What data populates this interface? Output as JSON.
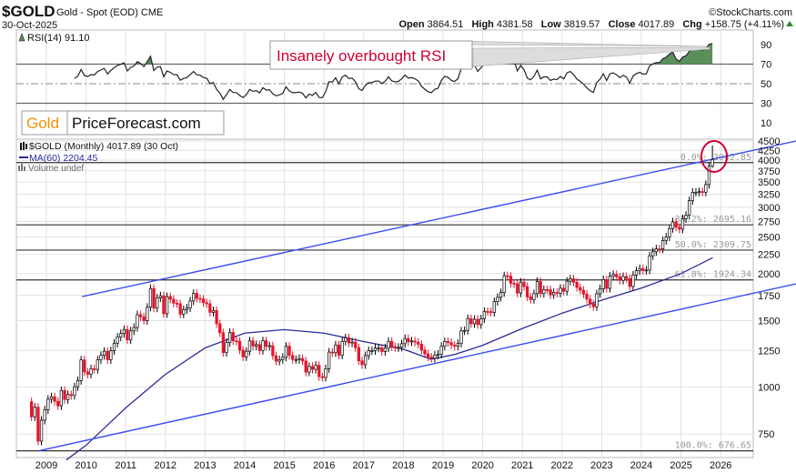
{
  "header": {
    "symbol": "$GOLD",
    "description": "Gold - Spot (EOD) CME",
    "date": "30-Oct-2025",
    "watermark": "©StockCharts.com",
    "open_label": "Open",
    "open": "3864.51",
    "high_label": "High",
    "high": "4381.58",
    "low_label": "Low",
    "low": "3819.57",
    "close_label": "Close",
    "close": "4017.89",
    "chg_label": "Chg",
    "chg": "+158.75 (+4.11%)",
    "up_color": "#2e8b2e"
  },
  "logo": {
    "part1": "Gold",
    "part2": "PriceForecast.com",
    "part1_color": "#f39200"
  },
  "annotation": {
    "text": "Insanely overbought RSI",
    "color": "#cc0033"
  },
  "chart_data": [
    {
      "type": "line",
      "name": "rsi-panel",
      "legend": "RSI(14) 91.10",
      "ylim": [
        0,
        100
      ],
      "yticks": [
        90,
        70,
        50,
        30,
        10
      ],
      "overbought": 70,
      "midline": 50,
      "fill_color": "#5a8f5a",
      "period": 14
    },
    {
      "type": "candlestick",
      "name": "price-panel",
      "legend_price": "$GOLD (Monthly) 4017.89 (30 Oct)",
      "legend_ma": "MA(60) 2204.45",
      "legend_volume": "Volume undef",
      "scale": "log",
      "ylim": [
        640,
        4600
      ],
      "yticks": [
        4500,
        4250,
        4000,
        3750,
        3500,
        3250,
        3000,
        2750,
        2500,
        2250,
        2000,
        1750,
        1500,
        1250,
        1000,
        750
      ],
      "xticks": [
        "2009",
        "2010",
        "2011",
        "2012",
        "2013",
        "2014",
        "2015",
        "2016",
        "2017",
        "2018",
        "2019",
        "2020",
        "2021",
        "2022",
        "2023",
        "2024",
        "2025",
        "2026"
      ],
      "start_month": "2008-07",
      "monthly_close": [
        914,
        833,
        884,
        718,
        816,
        870,
        928,
        942,
        916,
        891,
        979,
        926,
        955,
        949,
        1001,
        1040,
        1180,
        1096,
        1081,
        1118,
        1113,
        1180,
        1213,
        1244,
        1181,
        1248,
        1307,
        1357,
        1386,
        1421,
        1333,
        1409,
        1439,
        1556,
        1536,
        1500,
        1628,
        1826,
        1620,
        1725,
        1746,
        1565,
        1738,
        1710,
        1669,
        1664,
        1561,
        1604,
        1622,
        1692,
        1772,
        1719,
        1713,
        1675,
        1663,
        1578,
        1596,
        1472,
        1393,
        1234,
        1312,
        1396,
        1326,
        1323,
        1253,
        1202,
        1244,
        1326,
        1284,
        1296,
        1250,
        1327,
        1282,
        1287,
        1210,
        1171,
        1182,
        1199,
        1283,
        1213,
        1183,
        1183,
        1190,
        1172,
        1095,
        1134,
        1114,
        1142,
        1065,
        1060,
        1118,
        1238,
        1233,
        1293,
        1215,
        1322,
        1351,
        1309,
        1316,
        1272,
        1173,
        1146,
        1211,
        1249,
        1249,
        1268,
        1269,
        1242,
        1269,
        1322,
        1280,
        1271,
        1275,
        1303,
        1345,
        1318,
        1325,
        1315,
        1299,
        1253,
        1224,
        1201,
        1192,
        1215,
        1222,
        1282,
        1321,
        1313,
        1292,
        1284,
        1305,
        1409,
        1413,
        1520,
        1472,
        1513,
        1464,
        1517,
        1587,
        1585,
        1577,
        1686,
        1730,
        1781,
        1975,
        1968,
        1886,
        1879,
        1776,
        1898,
        1848,
        1734,
        1707,
        1769,
        1906,
        1770,
        1814,
        1813,
        1757,
        1783,
        1774,
        1829,
        1796,
        1909,
        1937,
        1897,
        1838,
        1807,
        1765,
        1711,
        1660,
        1633,
        1768,
        1824,
        1928,
        1827,
        1969,
        1990,
        1962,
        1919,
        1965,
        1940,
        1849,
        1983,
        2036,
        2063,
        2039,
        2044,
        2230,
        2286,
        2327,
        2326,
        2447,
        2503,
        2634,
        2744,
        2657,
        2625,
        2798,
        2858,
        3124,
        3289,
        3289,
        3303,
        3290,
        3448,
        3858,
        4017.89
      ],
      "last_bar": {
        "open": 3864.51,
        "high": 4381.58,
        "low": 3819.57,
        "close": 4017.89
      },
      "ma60": [
        [
          2009.5,
          640
        ],
        [
          2010,
          700
        ],
        [
          2011,
          880
        ],
        [
          2012,
          1080
        ],
        [
          2013,
          1270
        ],
        [
          2014,
          1390
        ],
        [
          2015,
          1420
        ],
        [
          2016,
          1390
        ],
        [
          2017,
          1320
        ],
        [
          2018,
          1260
        ],
        [
          2018.7,
          1185
        ],
        [
          2019.3,
          1220
        ],
        [
          2020,
          1290
        ],
        [
          2021,
          1430
        ],
        [
          2022,
          1570
        ],
        [
          2023,
          1700
        ],
        [
          2024,
          1830
        ],
        [
          2025,
          2000
        ],
        [
          2025.8,
          2204.45
        ]
      ],
      "ma_color": "#2a2a9a",
      "trendlines": [
        {
          "from": [
            2009.9,
            1738
          ],
          "to": [
            2027.9,
            4500
          ]
        },
        {
          "from": [
            2008.8,
            676.65
          ],
          "to": [
            2027.9,
            1879
          ]
        }
      ],
      "trendline_color": "#3b4df0",
      "fib_levels": [
        {
          "label": "0.0%: 3942.85",
          "value": 3942.85
        },
        {
          "label": "38.2%: 2695.16",
          "value": 2695.16
        },
        {
          "label": "50.0%: 2309.75",
          "value": 2309.75
        },
        {
          "label": "61.8%: 1924.34",
          "value": 1924.34
        },
        {
          "label": "100.0%: 676.65",
          "value": 676.65
        }
      ],
      "up_color": "#000000",
      "down_color": "#e8132b"
    }
  ]
}
